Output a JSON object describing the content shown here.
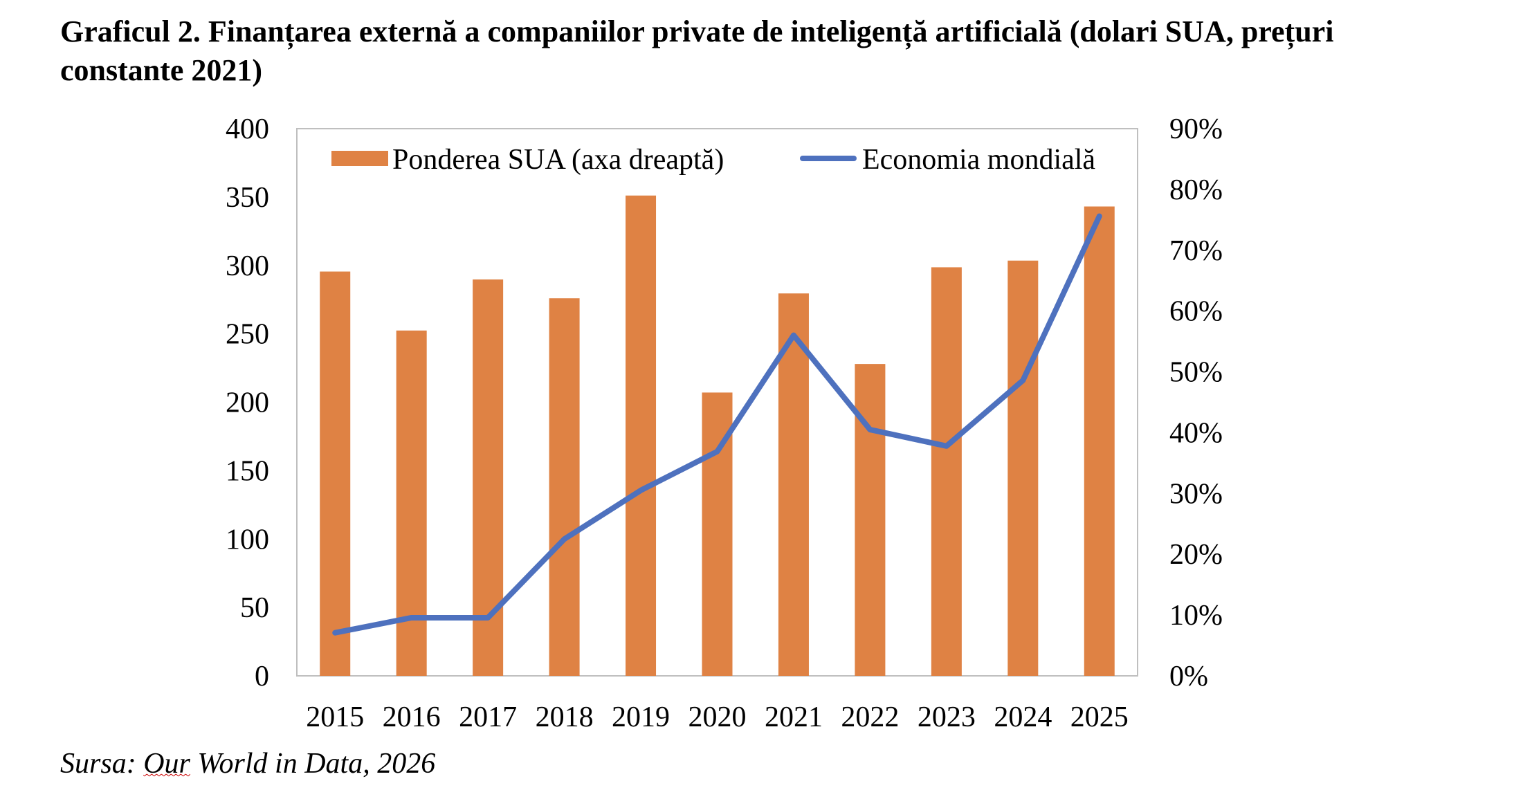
{
  "chart_data": {
    "type": "bar+line",
    "title": "Graficul 2. Finanțarea externă a companiilor private de inteligență artificială (dolari SUA, prețuri constante 2021)",
    "categories": [
      "2015",
      "2016",
      "2017",
      "2018",
      "2019",
      "2020",
      "2021",
      "2022",
      "2023",
      "2024",
      "2025"
    ],
    "series": [
      {
        "name": "Ponderea SUA (axa dreaptă)",
        "type": "bar",
        "axis": "right",
        "color": "#DF8244",
        "values": [
          66.5,
          56.8,
          65.2,
          62.1,
          79.0,
          46.6,
          62.9,
          51.3,
          67.2,
          68.3,
          77.2
        ]
      },
      {
        "name": "Economia mondială",
        "type": "line",
        "axis": "left",
        "color": "#4E71BE",
        "values": [
          31.5,
          42.5,
          42.5,
          100,
          135.6,
          164,
          249,
          180,
          168,
          216,
          336
        ]
      }
    ],
    "left_axis": {
      "ylim": [
        0,
        400
      ],
      "ticks": [
        "0",
        "50",
        "100",
        "150",
        "200",
        "250",
        "300",
        "350",
        "400"
      ]
    },
    "right_axis": {
      "ylim": [
        0,
        90
      ],
      "ticks": [
        "0%",
        "10%",
        "20%",
        "30%",
        "40%",
        "50%",
        "60%",
        "70%",
        "80%",
        "90%"
      ]
    },
    "grid": false,
    "legend": "top-inside"
  },
  "source": {
    "prefix": "Sursa: ",
    "underlined": "Our",
    "rest": " World in Data, 2026"
  }
}
